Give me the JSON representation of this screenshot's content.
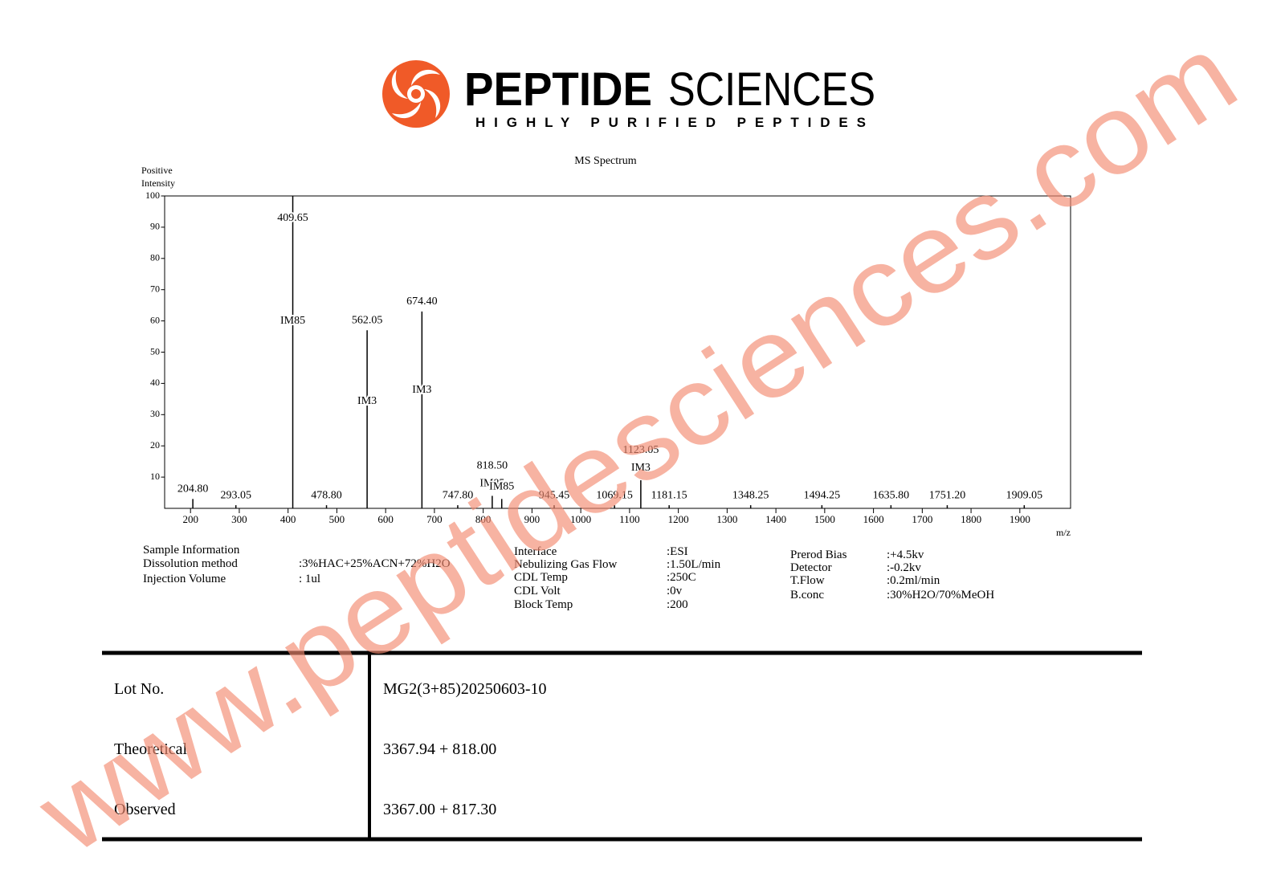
{
  "header": {
    "brand_bold": "PEPTIDE",
    "brand_light": "SCIENCES",
    "tagline": "HIGHLY PURIFIED PEPTIDES"
  },
  "chart_data": {
    "type": "stem",
    "title": "MS Spectrum",
    "ylabel": [
      "Positive",
      "Intensity"
    ],
    "xlabel": "m/z",
    "x": [
      204.8,
      293.05,
      409.65,
      478.8,
      562.05,
      674.4,
      747.8,
      818.5,
      838,
      945.45,
      1069.15,
      1123.05,
      1181.15,
      1348.25,
      1494.25,
      1635.8,
      1751.2,
      1909.05
    ],
    "x_labels": [
      "204.80",
      "293.05",
      "409.65",
      "478.80",
      "562.05",
      "674.40",
      "747.80",
      "818.50",
      null,
      "945.45",
      "1069.15",
      "1123.05",
      "1181.15",
      "1348.25",
      "1494.25",
      "1635.80",
      "1751.20",
      "1909.05"
    ],
    "values": [
      3,
      1,
      100,
      1,
      57,
      63,
      1,
      4,
      3,
      1,
      1,
      9,
      1,
      1,
      1,
      1,
      1,
      1
    ],
    "tags": [
      null,
      null,
      "IM85",
      null,
      "IM3",
      "IM3",
      null,
      "IM85",
      "IM85",
      null,
      null,
      "IM3",
      null,
      null,
      null,
      null,
      null,
      null
    ],
    "color": "#000000",
    "xlim": [
      147,
      2004
    ],
    "xticks": [
      200,
      300,
      400,
      500,
      600,
      700,
      800,
      900,
      1000,
      1100,
      1200,
      1300,
      1400,
      1500,
      1600,
      1700,
      1800,
      1900
    ],
    "ylim": [
      0,
      100
    ],
    "yticks": [
      10,
      20,
      30,
      40,
      50,
      60,
      70,
      80,
      90,
      100
    ]
  },
  "sample_info": {
    "title": "Sample Information",
    "groups": [
      [
        {
          "label": "Dissolution method",
          "value": ":3%HAC+25%ACN+72%H2O"
        },
        {
          "label": "Injection Volume",
          "value": ": 1ul"
        }
      ],
      [
        {
          "label": "Interface",
          "value": ":ESI"
        },
        {
          "label": "Nebulizing Gas Flow",
          "value": ":1.50L/min"
        },
        {
          "label": "CDL Temp",
          "value": ":250C"
        },
        {
          "label": "CDL Volt",
          "value": ":0v"
        },
        {
          "label": "Block Temp",
          "value": ":200"
        }
      ],
      [
        {
          "label": "Prerod Bias",
          "value": ":+4.5kv"
        },
        {
          "label": "Detector",
          "value": ":-0.2kv"
        },
        {
          "label": "T.Flow",
          "value": ":0.2ml/min"
        },
        {
          "label": "B.conc",
          "value": ":30%H2O/70%MeOH"
        }
      ]
    ]
  },
  "table": {
    "rows": [
      [
        "Lot No.",
        "MG2(3+85)20250603-10"
      ],
      [
        "Theoretical",
        "3367.94 + 818.00"
      ],
      [
        "Observed",
        "3367.00 + 817.30"
      ]
    ]
  },
  "watermark": "www.peptidesciences.com"
}
